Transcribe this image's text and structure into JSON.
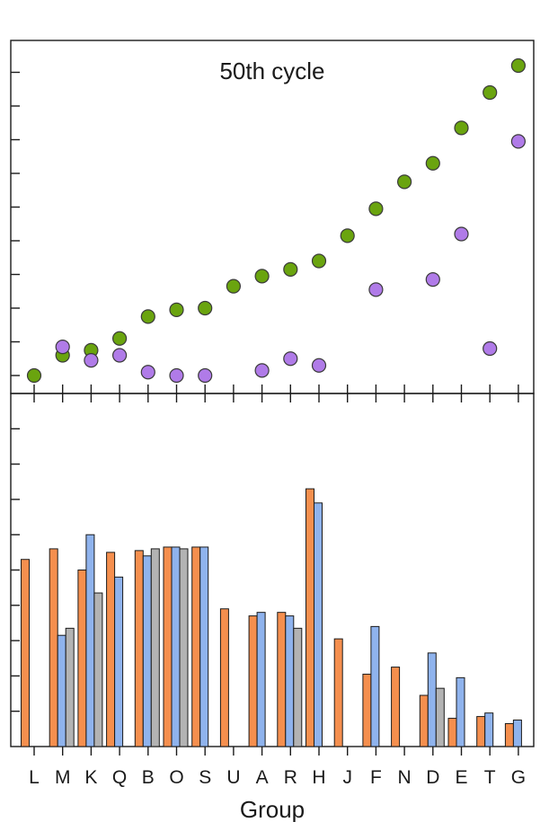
{
  "chart_data": [
    {
      "type": "scatter",
      "panel": "top",
      "title": "50th cycle",
      "categories": [
        "L",
        "M",
        "K",
        "Q",
        "B",
        "O",
        "S",
        "U",
        "A",
        "R",
        "H",
        "J",
        "F",
        "N",
        "D",
        "E",
        "T",
        "G"
      ],
      "ylim": [
        0,
        10.5
      ],
      "series": [
        {
          "color": "#6aa40f",
          "values": [
            0.0,
            0.6,
            0.75,
            1.1,
            1.75,
            1.95,
            2.0,
            2.65,
            2.95,
            3.15,
            3.4,
            4.15,
            4.95,
            5.75,
            6.3,
            7.35,
            8.4,
            9.2
          ]
        },
        {
          "color": "#b07be8",
          "values": [
            null,
            0.85,
            0.45,
            0.6,
            0.1,
            0.0,
            0.0,
            null,
            0.15,
            0.5,
            0.3,
            null,
            2.55,
            null,
            2.85,
            4.2,
            0.8,
            6.95
          ]
        }
      ],
      "grid": false
    },
    {
      "type": "bar",
      "panel": "bottom",
      "xlabel": "Group",
      "categories": [
        "L",
        "M",
        "K",
        "Q",
        "B",
        "O",
        "S",
        "U",
        "A",
        "R",
        "H",
        "J",
        "F",
        "N",
        "D",
        "E",
        "T",
        "G"
      ],
      "ylim": [
        0,
        10.5
      ],
      "series": [
        {
          "color": "#f58f4e",
          "values": [
            5.3,
            5.6,
            5.0,
            5.5,
            5.55,
            5.65,
            5.65,
            3.9,
            3.7,
            3.8,
            7.3,
            3.05,
            2.05,
            2.25,
            1.45,
            0.8,
            0.85,
            0.65
          ]
        },
        {
          "color": "#8fb3ed",
          "values": [
            null,
            3.15,
            6.0,
            4.8,
            5.4,
            5.65,
            5.65,
            null,
            3.8,
            3.7,
            6.9,
            null,
            3.4,
            null,
            2.65,
            1.95,
            0.95,
            0.75
          ]
        },
        {
          "color": "#b3b3b3",
          "values": [
            null,
            3.35,
            4.35,
            null,
            5.6,
            5.6,
            null,
            null,
            null,
            3.35,
            null,
            null,
            null,
            null,
            1.65,
            null,
            null,
            null
          ]
        }
      ],
      "grid": false
    }
  ]
}
